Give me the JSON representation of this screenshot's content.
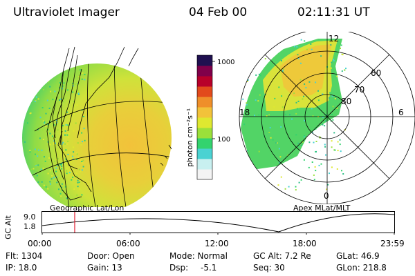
{
  "header": {
    "title": "Ultraviolet Imager",
    "date": "04 Feb 00",
    "time": "02:11:31 UT"
  },
  "colorbar": {
    "unit_label": "photon cm⁻²s⁻¹",
    "ticks": [
      {
        "label": "1000",
        "value": 1000
      },
      {
        "label": "100",
        "value": 100
      }
    ],
    "colors": [
      "#f4f4f4",
      "#c8f0f0",
      "#4ad2d2",
      "#33d36e",
      "#9be03a",
      "#dfe830",
      "#f2c23a",
      "#ef8f2a",
      "#e24a1c",
      "#b8002a",
      "#80004a",
      "#201050"
    ]
  },
  "left_map": {
    "caption": "Geographic Lat/Lon"
  },
  "right_map": {
    "caption": "Apex MLat/MLT",
    "mlt_labels": {
      "top": "12",
      "left": "18",
      "right": "6",
      "bottom": "0"
    },
    "mlat_labels": [
      "60",
      "70",
      "80"
    ]
  },
  "altitude_plot": {
    "ylabel": "GC Alt",
    "y_ticks": [
      "9.0",
      "1.8"
    ],
    "x_ticks": [
      "00:00",
      "06:00",
      "12:00",
      "18:00",
      "23:59"
    ],
    "marker_time": "02:11"
  },
  "status": {
    "flt": "Flt: 1304",
    "ip": "IP: 18.0",
    "door": "Door: Open",
    "gain": "Gain: 13",
    "mode": "Mode: Normal",
    "dsp_label": "Dsp:",
    "dsp_value": "-5.1",
    "gc_alt": "GC Alt: 7.2 Re",
    "seq": "Seq: 30",
    "glat": "GLat:  46.9",
    "glon": "GLon: 218.8"
  }
}
